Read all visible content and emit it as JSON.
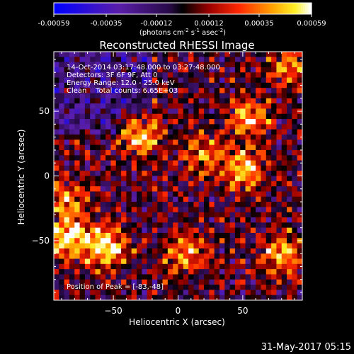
{
  "chart_data": {
    "type": "heatmap",
    "title": "Reconstructed RHESSI Image",
    "colorbar": {
      "ticks": [
        "-0.00059",
        "-0.00035",
        "-0.00012",
        "0.00012",
        "0.00035",
        "0.00059"
      ],
      "tick_values": [
        -0.00059,
        -0.00035,
        -0.00012,
        0.00012,
        0.00035,
        0.00059
      ],
      "range": [
        -0.00059,
        0.00059
      ],
      "unit_label": "(photons cm",
      "unit_sup1": "-2",
      "unit_mid1": " s",
      "unit_sup2": "-1",
      "unit_mid2": " asec",
      "unit_sup3": "-2",
      "unit_end": ")"
    },
    "xlabel": "Heliocentric X (arcsec)",
    "ylabel": "Heliocentric Y (arcsec)",
    "xlim": [
      -96,
      96
    ],
    "ylim": [
      -96,
      96
    ],
    "x_ticks": [
      -50,
      0,
      50
    ],
    "x_tick_labels": [
      "−50",
      "0",
      "50"
    ],
    "y_ticks": [
      -50,
      0,
      50
    ],
    "y_tick_labels": [
      "−50",
      "0",
      "50"
    ],
    "annotations": [
      "14-Oct-2014 03:17:48.000 to 03:27:48.000",
      "Detectors: 3F 6F 9F, Att 0",
      "Energy Range: 12.0 - 25.0 keV",
      "Clean    Total counts: 6.65E+03"
    ],
    "peak_label": "Position of Peak = [-83,-48]",
    "peak_position": [
      -83,
      -48
    ],
    "sources": [
      {
        "x": -30,
        "y": 33,
        "peak": 0.00059
      },
      {
        "x": -55,
        "y": -55,
        "peak": 0.00052
      },
      {
        "x": -83,
        "y": -48,
        "peak": 0.00059
      },
      {
        "x": 55,
        "y": 45,
        "peak": 0.00045
      },
      {
        "x": 50,
        "y": 5,
        "peak": 0.00048
      },
      {
        "x": 80,
        "y": -60,
        "peak": 0.00045
      },
      {
        "x": 5,
        "y": -60,
        "peak": 0.0004
      },
      {
        "x": -85,
        "y": -20,
        "peak": 0.00035
      },
      {
        "x": 85,
        "y": 85,
        "peak": 0.00035
      },
      {
        "x": 20,
        "y": 15,
        "peak": 0.00032
      }
    ],
    "colors": {
      "min": "#0000ff",
      "zero": "#000000",
      "max": "#ffffff",
      "mid": "#ff3300"
    }
  },
  "footer": {
    "timestamp": "31-May-2017 05:15"
  }
}
